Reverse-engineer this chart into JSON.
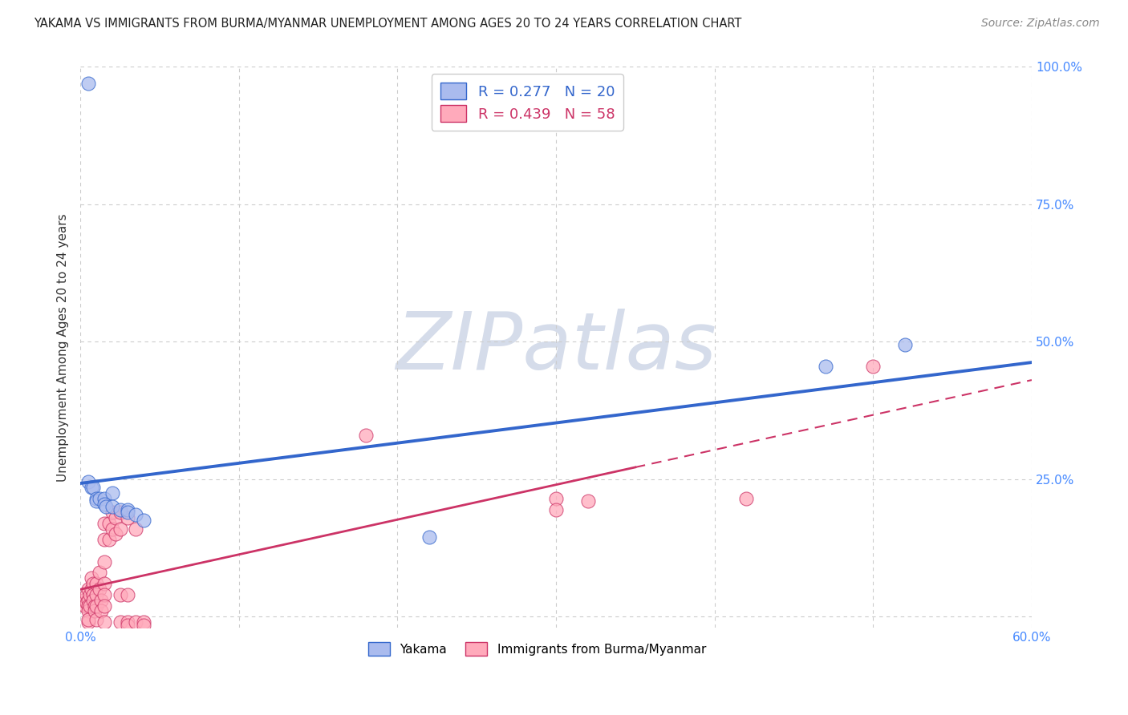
{
  "title": "YAKAMA VS IMMIGRANTS FROM BURMA/MYANMAR UNEMPLOYMENT AMONG AGES 20 TO 24 YEARS CORRELATION CHART",
  "source": "Source: ZipAtlas.com",
  "ylabel": "Unemployment Among Ages 20 to 24 years",
  "xlim": [
    0.0,
    0.6
  ],
  "ylim": [
    -0.02,
    1.0
  ],
  "x_ticks": [
    0.0,
    0.1,
    0.2,
    0.3,
    0.4,
    0.5,
    0.6
  ],
  "x_tick_labels": [
    "0.0%",
    "",
    "",
    "",
    "",
    "",
    "60.0%"
  ],
  "y_ticks": [
    0.0,
    0.25,
    0.5,
    0.75,
    1.0
  ],
  "y_tick_labels": [
    "",
    "25.0%",
    "50.0%",
    "75.0%",
    "100.0%"
  ],
  "grid_color": "#cccccc",
  "background_color": "#ffffff",
  "watermark": "ZIPatlas",
  "yakama_points": [
    [
      0.005,
      0.97
    ],
    [
      0.005,
      0.245
    ],
    [
      0.007,
      0.235
    ],
    [
      0.008,
      0.235
    ],
    [
      0.01,
      0.215
    ],
    [
      0.01,
      0.21
    ],
    [
      0.012,
      0.215
    ],
    [
      0.015,
      0.215
    ],
    [
      0.015,
      0.205
    ],
    [
      0.016,
      0.2
    ],
    [
      0.02,
      0.225
    ],
    [
      0.02,
      0.2
    ],
    [
      0.025,
      0.195
    ],
    [
      0.03,
      0.195
    ],
    [
      0.03,
      0.19
    ],
    [
      0.035,
      0.185
    ],
    [
      0.04,
      0.175
    ],
    [
      0.22,
      0.145
    ],
    [
      0.47,
      0.455
    ],
    [
      0.52,
      0.495
    ]
  ],
  "burma_points": [
    [
      0.002,
      0.03
    ],
    [
      0.003,
      0.02
    ],
    [
      0.004,
      0.04
    ],
    [
      0.004,
      0.025
    ],
    [
      0.005,
      0.05
    ],
    [
      0.005,
      0.03
    ],
    [
      0.005,
      0.02
    ],
    [
      0.005,
      0.01
    ],
    [
      0.005,
      -0.01
    ],
    [
      0.005,
      -0.005
    ],
    [
      0.006,
      0.04
    ],
    [
      0.006,
      0.02
    ],
    [
      0.007,
      0.07
    ],
    [
      0.007,
      0.05
    ],
    [
      0.008,
      0.06
    ],
    [
      0.008,
      0.04
    ],
    [
      0.008,
      0.03
    ],
    [
      0.009,
      0.02
    ],
    [
      0.009,
      0.01
    ],
    [
      0.01,
      0.06
    ],
    [
      0.01,
      0.04
    ],
    [
      0.01,
      0.02
    ],
    [
      0.01,
      -0.005
    ],
    [
      0.012,
      0.08
    ],
    [
      0.012,
      0.05
    ],
    [
      0.013,
      0.03
    ],
    [
      0.013,
      0.01
    ],
    [
      0.015,
      0.17
    ],
    [
      0.015,
      0.14
    ],
    [
      0.015,
      0.1
    ],
    [
      0.015,
      0.06
    ],
    [
      0.015,
      0.04
    ],
    [
      0.015,
      0.02
    ],
    [
      0.015,
      -0.01
    ],
    [
      0.018,
      0.17
    ],
    [
      0.018,
      0.14
    ],
    [
      0.02,
      0.19
    ],
    [
      0.02,
      0.16
    ],
    [
      0.022,
      0.18
    ],
    [
      0.022,
      0.15
    ],
    [
      0.025,
      0.19
    ],
    [
      0.025,
      0.16
    ],
    [
      0.025,
      0.04
    ],
    [
      0.025,
      -0.01
    ],
    [
      0.03,
      0.18
    ],
    [
      0.03,
      0.04
    ],
    [
      0.03,
      -0.01
    ],
    [
      0.03,
      -0.015
    ],
    [
      0.035,
      0.16
    ],
    [
      0.035,
      -0.01
    ],
    [
      0.04,
      -0.01
    ],
    [
      0.04,
      -0.015
    ],
    [
      0.18,
      0.33
    ],
    [
      0.3,
      0.215
    ],
    [
      0.3,
      0.195
    ],
    [
      0.32,
      0.21
    ],
    [
      0.42,
      0.215
    ],
    [
      0.5,
      0.455
    ]
  ],
  "yakama_line_color": "#3366cc",
  "burma_line_color": "#cc3366",
  "yakama_scatter_color": "#aabbee",
  "burma_scatter_color": "#ffaabb",
  "title_fontsize": 10.5,
  "source_fontsize": 10,
  "ylabel_fontsize": 11,
  "tick_fontsize": 11,
  "legend_fontsize": 13,
  "watermark_color": "#d5dcea",
  "watermark_fontsize": 72,
  "tick_color": "#4488ff"
}
